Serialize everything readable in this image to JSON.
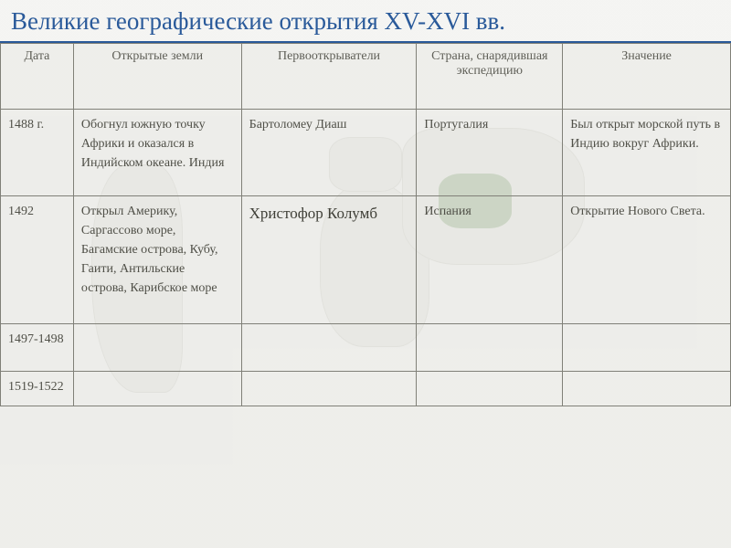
{
  "title": "Великие географические открытия XV-XVI вв.",
  "headers": {
    "date": "Дата",
    "lands": "Открытые земли",
    "discoverer": "Первооткрыватели",
    "country": "Страна, снарядившая экспедицию",
    "meaning": "Значение"
  },
  "rows": [
    {
      "date": "1488 г.",
      "lands": "Обогнул южную точку Африки и оказался в Индийском океане. Индия",
      "discoverer": "Бартоломеу Диаш",
      "country": "Португалия",
      "meaning": "Был открыт морской путь в Индию вокруг Африки."
    },
    {
      "date": "1492",
      "lands": "Открыл Америку, Саргассово море, Багамские острова, Кубу, Гаити, Антильские острова, Карибское море",
      "discoverer": "Христофор Колумб",
      "country": "Испания",
      "meaning": "Открытие Нового Света."
    },
    {
      "date": "1497-1498",
      "lands": "",
      "discoverer": "",
      "country": "",
      "meaning": ""
    },
    {
      "date": "1519-1522",
      "lands": "",
      "discoverer": "",
      "country": "",
      "meaning": ""
    }
  ],
  "colors": {
    "title_color": "#2a5a9a",
    "border_color": "#808078",
    "text_color": "#505048",
    "background": "#f0f0ed"
  }
}
